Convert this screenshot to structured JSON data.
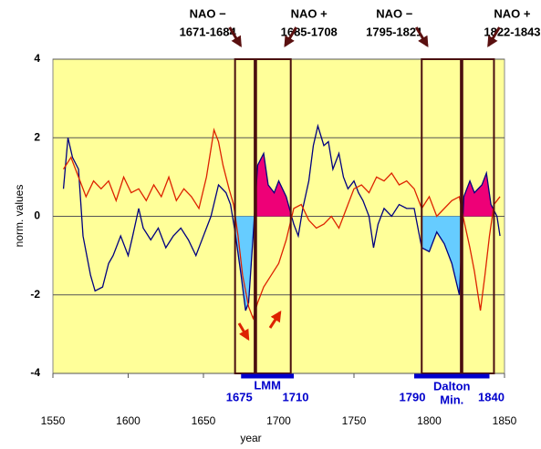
{
  "chart_data": {
    "type": "line",
    "xlabel": "year",
    "ylabel": "norm. values",
    "xlim": [
      1550,
      1850
    ],
    "xticks": [
      1550,
      1600,
      1650,
      1700,
      1750,
      1800,
      1850
    ],
    "ylim": [
      -4,
      4
    ],
    "yticks": [
      -4,
      -2,
      0,
      2,
      4
    ],
    "grid": true,
    "background": "#ffff99",
    "series": [
      {
        "color": "#000080",
        "x": [
          1557,
          1560,
          1563,
          1567,
          1570,
          1575,
          1578,
          1583,
          1587,
          1590,
          1595,
          1600,
          1603,
          1607,
          1610,
          1615,
          1620,
          1625,
          1630,
          1635,
          1640,
          1645,
          1650,
          1655,
          1660,
          1665,
          1668,
          1671,
          1675,
          1678,
          1680,
          1683,
          1686,
          1690,
          1693,
          1697,
          1700,
          1705,
          1710,
          1713,
          1716,
          1720,
          1723,
          1726,
          1730,
          1733,
          1736,
          1740,
          1743,
          1746,
          1750,
          1753,
          1756,
          1760,
          1763,
          1766,
          1770,
          1775,
          1780,
          1785,
          1790,
          1795,
          1800,
          1805,
          1810,
          1815,
          1820,
          1823,
          1827,
          1830,
          1835,
          1838,
          1841,
          1845,
          1847
        ],
        "values": [
          0.7,
          2.0,
          1.5,
          1.2,
          -0.5,
          -1.5,
          -1.9,
          -1.8,
          -1.2,
          -1.0,
          -0.5,
          -1.0,
          -0.5,
          0.2,
          -0.3,
          -0.6,
          -0.3,
          -0.8,
          -0.5,
          -0.3,
          -0.6,
          -1.0,
          -0.5,
          0.0,
          0.8,
          0.6,
          0.3,
          -0.4,
          -1.5,
          -2.4,
          -2.2,
          -0.5,
          1.3,
          1.6,
          0.8,
          0.6,
          0.9,
          0.5,
          -0.2,
          -0.5,
          0.2,
          0.9,
          1.8,
          2.3,
          1.8,
          1.9,
          1.2,
          1.6,
          1.0,
          0.7,
          0.9,
          0.6,
          0.4,
          0.0,
          -0.8,
          -0.2,
          0.2,
          0.0,
          0.3,
          0.2,
          0.2,
          -0.8,
          -0.9,
          -0.4,
          -0.7,
          -1.2,
          -2.0,
          0.5,
          0.9,
          0.6,
          0.8,
          1.1,
          0.3,
          0.0,
          -0.5
        ]
      },
      {
        "color": "#dd2200",
        "x": [
          1557,
          1562,
          1567,
          1572,
          1577,
          1582,
          1587,
          1592,
          1597,
          1602,
          1607,
          1612,
          1617,
          1622,
          1627,
          1632,
          1637,
          1642,
          1647,
          1652,
          1657,
          1660,
          1663,
          1667,
          1670,
          1673,
          1676,
          1680,
          1683,
          1686,
          1690,
          1695,
          1700,
          1705,
          1710,
          1715,
          1720,
          1725,
          1730,
          1735,
          1740,
          1745,
          1750,
          1755,
          1760,
          1765,
          1770,
          1775,
          1780,
          1785,
          1790,
          1795,
          1800,
          1805,
          1810,
          1815,
          1820,
          1823,
          1827,
          1830,
          1834,
          1837,
          1840,
          1843,
          1847
        ],
        "values": [
          1.2,
          1.5,
          1.0,
          0.5,
          0.9,
          0.7,
          0.9,
          0.4,
          1.0,
          0.6,
          0.7,
          0.4,
          0.8,
          0.5,
          1.0,
          0.4,
          0.7,
          0.5,
          0.2,
          1.0,
          2.2,
          1.9,
          1.3,
          0.7,
          0.3,
          -0.5,
          -1.5,
          -2.3,
          -2.6,
          -2.2,
          -1.8,
          -1.5,
          -1.2,
          -0.6,
          0.2,
          0.3,
          -0.1,
          -0.3,
          -0.2,
          0.0,
          -0.3,
          0.2,
          0.7,
          0.8,
          0.6,
          1.0,
          0.9,
          1.1,
          0.8,
          0.9,
          0.7,
          0.2,
          0.5,
          0.0,
          0.2,
          0.4,
          0.5,
          -0.1,
          -0.8,
          -1.4,
          -2.4,
          -1.5,
          -0.5,
          0.3,
          0.5
        ]
      }
    ],
    "nao_periods": [
      {
        "phase": "NAO −",
        "label": "1671-1684",
        "start": 1671,
        "end": 1684,
        "fill": "#66ccff"
      },
      {
        "phase": "NAO +",
        "label": "1685-1708",
        "start": 1685,
        "end": 1708,
        "fill": "#ee0077"
      },
      {
        "phase": "NAO −",
        "label": "1795-1821",
        "start": 1795,
        "end": 1821,
        "fill": "#66ccff"
      },
      {
        "phase": "NAO +",
        "label": "1822-1843",
        "start": 1822,
        "end": 1843,
        "fill": "#ee0077"
      }
    ],
    "minima": [
      {
        "name": [
          "LMM"
        ],
        "start": 1675,
        "end": 1710
      },
      {
        "name": [
          "Dalton",
          "Min."
        ],
        "start": 1790,
        "end": 1840
      }
    ]
  }
}
